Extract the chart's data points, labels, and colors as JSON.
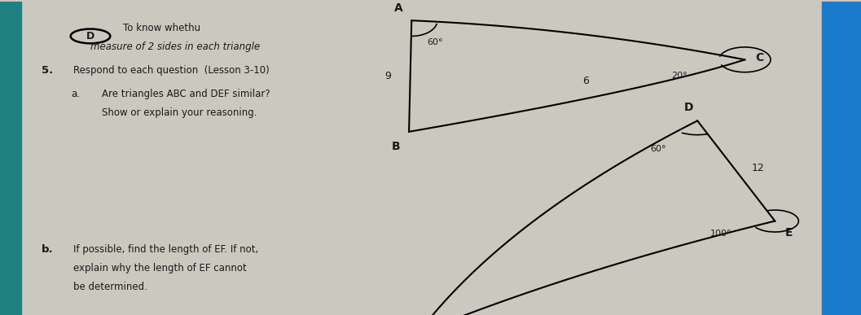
{
  "bg_color": "#cbc8c0",
  "text_color": "#1a1a1a",
  "left_panel": {
    "circle_label": "D",
    "line1_a": "To know whethu",
    "line1_b": "measure of 2 sides in each triangle",
    "q5_text": "Respond to each question  (Lesson 3-10)",
    "qa_text1": "Are triangles ABC and DEF similar?",
    "qa_text2": "Show or explain your reasoning.",
    "qb_text1": "If possible, find the length of EF. If not,",
    "qb_text2": "explain why the length of EF cannot",
    "qb_text3": "be determined."
  },
  "triangle_ABC": {
    "A": [
      0.478,
      0.94
    ],
    "B": [
      0.475,
      0.585
    ],
    "C": [
      0.865,
      0.815
    ],
    "angle_A": "60°",
    "angle_C": "20°",
    "side_AB": "9",
    "side_BC": "6"
  },
  "triangle_DEF": {
    "D": [
      0.81,
      0.62
    ],
    "E": [
      0.9,
      0.3
    ],
    "F": [
      0.485,
      -0.06
    ],
    "angle_D": "60°",
    "angle_E": "100°",
    "side_DE": "12"
  },
  "right_strip_color": "#1a7acc",
  "left_strip_color": "#1e8080"
}
